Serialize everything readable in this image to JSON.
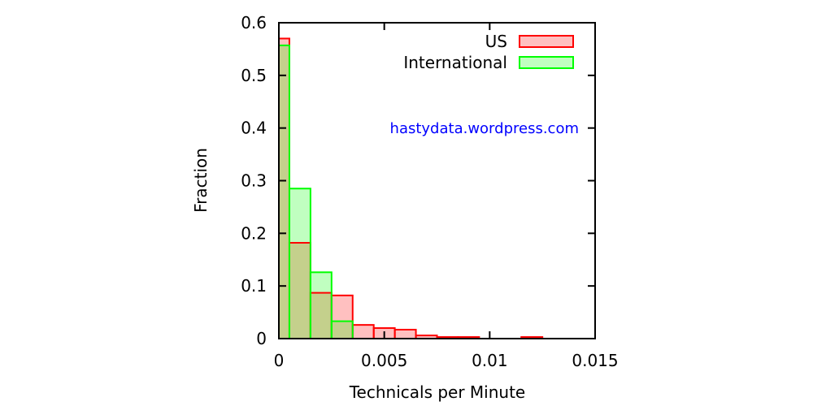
{
  "chart_data": {
    "type": "bar",
    "title": "",
    "xlabel": "Technicals per Minute",
    "ylabel": "Fraction",
    "xlim": [
      0,
      0.015
    ],
    "ylim": [
      0,
      0.6
    ],
    "x_ticks": [
      "0",
      "0.005",
      "0.01",
      "0.015"
    ],
    "y_ticks": [
      "0",
      "0.1",
      "0.2",
      "0.3",
      "0.4",
      "0.5",
      "0.6"
    ],
    "bin_width": 0.0005,
    "legend_position": "top-right",
    "annotation": "hastydata.wordpress.com",
    "series": [
      {
        "name": "US",
        "stroke": "#ff0000",
        "fill": "#ffc0c0",
        "bins": [
          {
            "x0": 0,
            "x1": 0.0005,
            "y": 0.57
          },
          {
            "x0": 0.0005,
            "x1": 0.0015,
            "y": 0.182
          },
          {
            "x0": 0.0015,
            "x1": 0.0025,
            "y": 0.087
          },
          {
            "x0": 0.0025,
            "x1": 0.0035,
            "y": 0.082
          },
          {
            "x0": 0.0035,
            "x1": 0.0045,
            "y": 0.026
          },
          {
            "x0": 0.0045,
            "x1": 0.0055,
            "y": 0.02
          },
          {
            "x0": 0.0055,
            "x1": 0.0065,
            "y": 0.017
          },
          {
            "x0": 0.0065,
            "x1": 0.0075,
            "y": 0.006
          },
          {
            "x0": 0.0075,
            "x1": 0.0085,
            "y": 0.003
          },
          {
            "x0": 0.0085,
            "x1": 0.0095,
            "y": 0.003
          },
          {
            "x0": 0.0115,
            "x1": 0.0125,
            "y": 0.003
          }
        ]
      },
      {
        "name": "International",
        "stroke": "#00ff00",
        "fill": "#c0ffc0",
        "bins": [
          {
            "x0": 0,
            "x1": 0.0005,
            "y": 0.557
          },
          {
            "x0": 0.0005,
            "x1": 0.0015,
            "y": 0.285
          },
          {
            "x0": 0.0015,
            "x1": 0.0025,
            "y": 0.126
          },
          {
            "x0": 0.0025,
            "x1": 0.0035,
            "y": 0.033
          }
        ]
      }
    ],
    "overlap_fill": "#c4d08c",
    "annotation_color": "#0000ff"
  }
}
